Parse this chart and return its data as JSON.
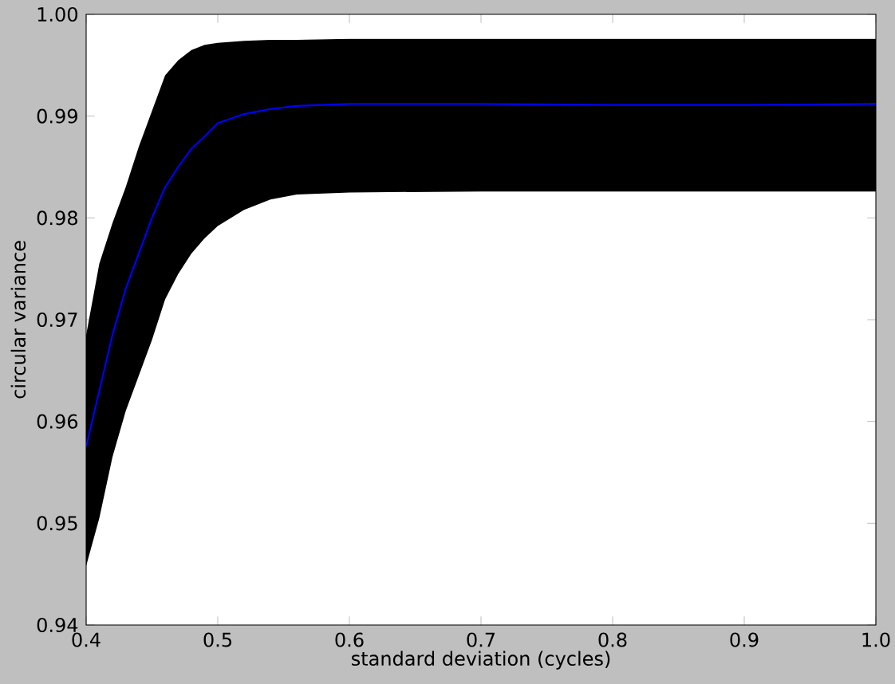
{
  "chart_data": {
    "type": "line",
    "xlabel": "standard deviation (cycles)",
    "ylabel": "circular variance",
    "x": [
      0.4,
      0.41,
      0.42,
      0.43,
      0.44,
      0.45,
      0.46,
      0.47,
      0.48,
      0.49,
      0.5,
      0.52,
      0.54,
      0.56,
      0.6,
      0.7,
      0.8,
      0.9,
      1.0
    ],
    "series": [
      {
        "color": "#0000ff",
        "values": [
          0.9575,
          0.963,
          0.9685,
          0.973,
          0.9765,
          0.98,
          0.983,
          0.985,
          0.9868,
          0.988,
          0.9893,
          0.9902,
          0.9907,
          0.991,
          0.9912,
          0.9912,
          0.9911,
          0.9911,
          0.9912
        ],
        "upper": [
          0.9685,
          0.9755,
          0.9795,
          0.983,
          0.987,
          0.9905,
          0.994,
          0.9955,
          0.9965,
          0.997,
          0.9972,
          0.9974,
          0.9975,
          0.9975,
          0.9976,
          0.9976,
          0.9976,
          0.9976,
          0.9976
        ],
        "lower": [
          0.9458,
          0.9505,
          0.9565,
          0.961,
          0.9645,
          0.968,
          0.972,
          0.9745,
          0.9765,
          0.978,
          0.9792,
          0.9808,
          0.9818,
          0.9823,
          0.9825,
          0.9826,
          0.9826,
          0.9826,
          0.9826
        ]
      }
    ],
    "xlim": [
      0.4,
      1.0
    ],
    "ylim": [
      0.94,
      1.0
    ],
    "xticks": [
      0.4,
      0.5,
      0.6,
      0.7,
      0.8,
      0.9,
      {
        "value": 1.0,
        "label": "1.0"
      }
    ],
    "yticks": [
      0.94,
      0.95,
      0.96,
      0.97,
      0.98,
      0.99,
      {
        "value": 1.0,
        "label": "1.00"
      }
    ],
    "grid": false
  }
}
